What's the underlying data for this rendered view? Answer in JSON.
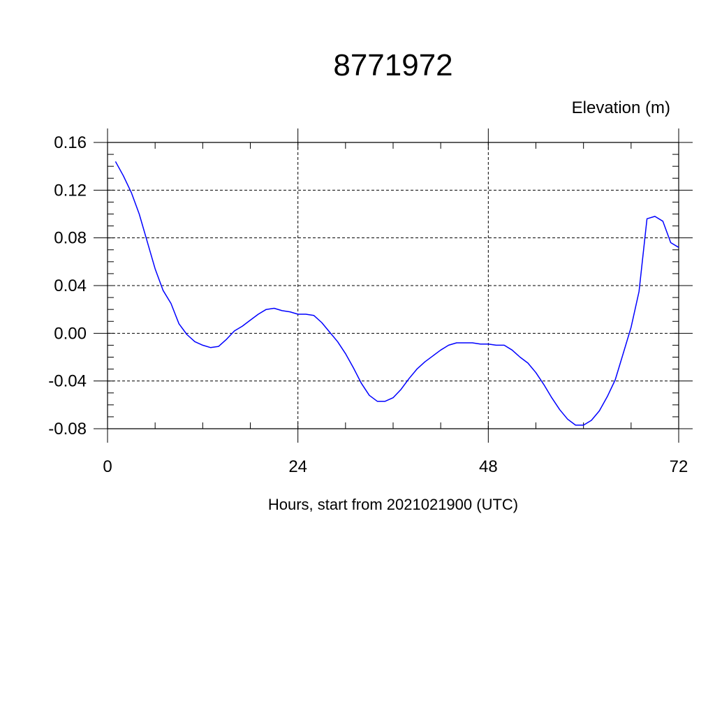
{
  "chart_data": {
    "type": "line",
    "title": "8771972",
    "ylabel": "Elevation (m)",
    "xlabel": "Hours, start from 2021021900 (UTC)",
    "xlim": [
      0,
      72
    ],
    "ylim": [
      -0.08,
      0.16
    ],
    "x_ticks": [
      0,
      24,
      48,
      72
    ],
    "x_tick_labels": [
      "0",
      "24",
      "48",
      "72"
    ],
    "y_ticks": [
      -0.08,
      -0.04,
      0.0,
      0.04,
      0.08,
      0.12,
      0.16
    ],
    "y_tick_labels": [
      "-0.08",
      "-0.04",
      "0.00",
      "0.04",
      "0.08",
      "0.12",
      "0.16"
    ],
    "grid": true,
    "line_color": "#0000ff",
    "series": [
      {
        "x": [
          1,
          2,
          3,
          4,
          5,
          6,
          7,
          8,
          9,
          10,
          11,
          12,
          13,
          14,
          15,
          16,
          17,
          18,
          19,
          20,
          21,
          22,
          23,
          24,
          25,
          26,
          27,
          28,
          29,
          30,
          31,
          32,
          33,
          34,
          35,
          36,
          37,
          38,
          39,
          40,
          41,
          42,
          43,
          44,
          45,
          46,
          47,
          48,
          49,
          50,
          51,
          52,
          53,
          54,
          55,
          56,
          57,
          58,
          59,
          60,
          61,
          62,
          63,
          64,
          65,
          66,
          67,
          68,
          69,
          70,
          71,
          72
        ],
        "values": [
          0.144,
          0.132,
          0.118,
          0.1,
          0.077,
          0.054,
          0.036,
          0.025,
          0.008,
          -0.001,
          -0.007,
          -0.01,
          -0.012,
          -0.011,
          -0.005,
          0.002,
          0.006,
          0.011,
          0.016,
          0.02,
          0.021,
          0.019,
          0.018,
          0.016,
          0.016,
          0.015,
          0.009,
          0.001,
          -0.007,
          -0.017,
          -0.029,
          -0.042,
          -0.052,
          -0.057,
          -0.057,
          -0.054,
          -0.047,
          -0.038,
          -0.03,
          -0.024,
          -0.019,
          -0.014,
          -0.01,
          -0.008,
          -0.008,
          -0.008,
          -0.009,
          -0.009,
          -0.01,
          -0.01,
          -0.014,
          -0.02,
          -0.025,
          -0.033,
          -0.043,
          -0.054,
          -0.064,
          -0.072,
          -0.077,
          -0.077,
          -0.073,
          -0.065,
          -0.053,
          -0.039,
          -0.017,
          0.005,
          0.035,
          0.096,
          0.098,
          0.094,
          0.076,
          0.072
        ]
      }
    ]
  }
}
